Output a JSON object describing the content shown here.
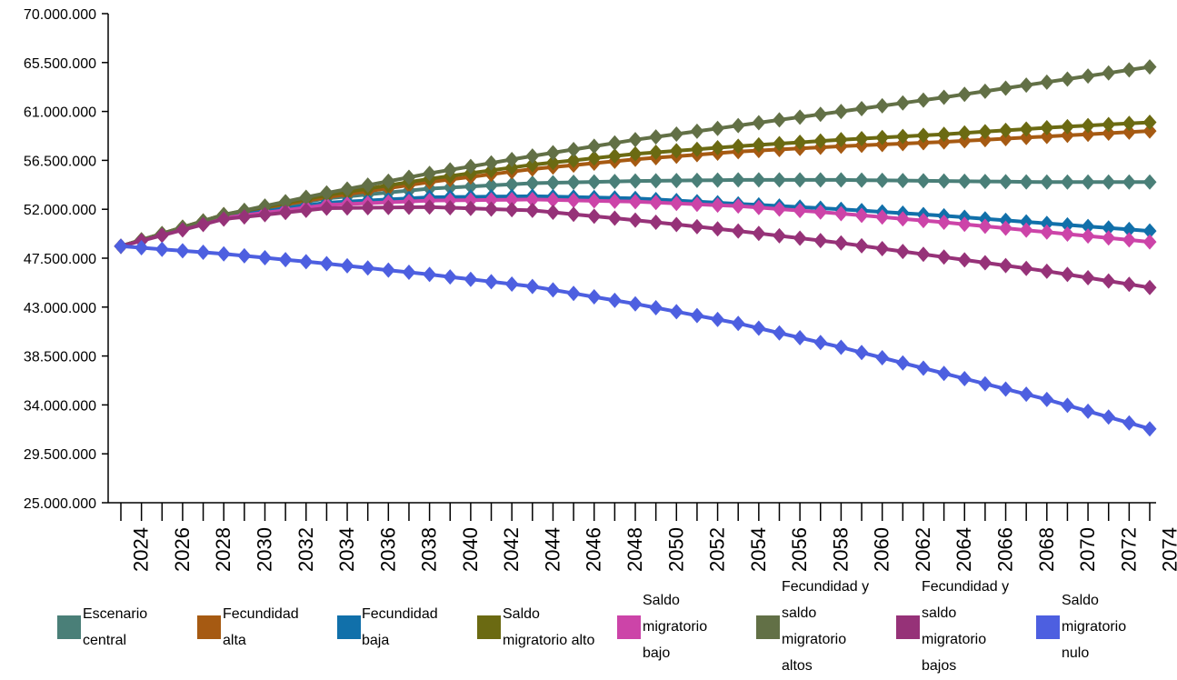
{
  "chart_data": {
    "type": "line",
    "title": "",
    "xlabel": "",
    "ylabel": "",
    "ylim": [
      25000000,
      70000000
    ],
    "y_ticks": [
      "25.000.000",
      "29.500.000",
      "34.000.000",
      "38.500.000",
      "43.000.000",
      "47.500.000",
      "52.000.000",
      "56.500.000",
      "61.000.000",
      "65.500.000",
      "70.000.000"
    ],
    "x_ticks": [
      "2024",
      "2026",
      "2028",
      "2030",
      "2032",
      "2034",
      "2036",
      "2038",
      "2040",
      "2042",
      "2044",
      "2046",
      "2048",
      "2050",
      "2052",
      "2054",
      "2056",
      "2058",
      "2060",
      "2062",
      "2064",
      "2066",
      "2068",
      "2070",
      "2072",
      "2074"
    ],
    "x_range": [
      2023,
      2073
    ],
    "marker": "diamond",
    "legend_position": "bottom",
    "series": [
      {
        "name": "Escenario central",
        "color": "#4a7f78",
        "anchors": [
          [
            2023,
            48600000
          ],
          [
            2028,
            51400000
          ],
          [
            2033,
            53000000
          ],
          [
            2038,
            53900000
          ],
          [
            2043,
            54400000
          ],
          [
            2048,
            54600000
          ],
          [
            2053,
            54700000
          ],
          [
            2058,
            54700000
          ],
          [
            2063,
            54600000
          ],
          [
            2068,
            54500000
          ],
          [
            2073,
            54500000
          ]
        ]
      },
      {
        "name": "Fecundidad alta",
        "color": "#a65a12",
        "anchors": [
          [
            2023,
            48600000
          ],
          [
            2028,
            51500000
          ],
          [
            2033,
            53100000
          ],
          [
            2038,
            54500000
          ],
          [
            2043,
            55700000
          ],
          [
            2048,
            56600000
          ],
          [
            2053,
            57300000
          ],
          [
            2058,
            57800000
          ],
          [
            2063,
            58200000
          ],
          [
            2068,
            58700000
          ],
          [
            2073,
            59200000
          ]
        ]
      },
      {
        "name": "Fecundidad baja",
        "color": "#1170aa",
        "anchors": [
          [
            2023,
            48600000
          ],
          [
            2028,
            51300000
          ],
          [
            2033,
            52600000
          ],
          [
            2038,
            53100000
          ],
          [
            2043,
            53200000
          ],
          [
            2048,
            53000000
          ],
          [
            2053,
            52500000
          ],
          [
            2058,
            52000000
          ],
          [
            2063,
            51400000
          ],
          [
            2068,
            50700000
          ],
          [
            2073,
            50000000
          ]
        ]
      },
      {
        "name": "Saldo migratorio alto",
        "color": "#6b6a12",
        "anchors": [
          [
            2023,
            48600000
          ],
          [
            2028,
            51500000
          ],
          [
            2033,
            53300000
          ],
          [
            2038,
            54800000
          ],
          [
            2043,
            56100000
          ],
          [
            2048,
            57100000
          ],
          [
            2053,
            57800000
          ],
          [
            2058,
            58400000
          ],
          [
            2063,
            58900000
          ],
          [
            2068,
            59500000
          ],
          [
            2073,
            60000000
          ]
        ]
      },
      {
        "name": "Saldo migratorio bajo",
        "color": "#cc44a8",
        "anchors": [
          [
            2023,
            48600000
          ],
          [
            2028,
            51200000
          ],
          [
            2033,
            52400000
          ],
          [
            2038,
            52800000
          ],
          [
            2043,
            52900000
          ],
          [
            2048,
            52700000
          ],
          [
            2053,
            52300000
          ],
          [
            2058,
            51600000
          ],
          [
            2063,
            50800000
          ],
          [
            2068,
            49900000
          ],
          [
            2073,
            49000000
          ]
        ]
      },
      {
        "name": "Fecundidad y saldo migratorio altos",
        "color": "#627046",
        "anchors": [
          [
            2023,
            48600000
          ],
          [
            2028,
            51500000
          ],
          [
            2033,
            53500000
          ],
          [
            2038,
            55300000
          ],
          [
            2043,
            56900000
          ],
          [
            2048,
            58400000
          ],
          [
            2053,
            59700000
          ],
          [
            2058,
            61000000
          ],
          [
            2063,
            62300000
          ],
          [
            2068,
            63700000
          ],
          [
            2073,
            65100000
          ]
        ]
      },
      {
        "name": "Fecundidad y saldo migratorio bajos",
        "color": "#963278",
        "anchors": [
          [
            2023,
            48600000
          ],
          [
            2028,
            51100000
          ],
          [
            2033,
            52100000
          ],
          [
            2038,
            52200000
          ],
          [
            2043,
            51900000
          ],
          [
            2048,
            51000000
          ],
          [
            2053,
            50000000
          ],
          [
            2058,
            48900000
          ],
          [
            2063,
            47600000
          ],
          [
            2068,
            46300000
          ],
          [
            2073,
            44800000
          ]
        ]
      },
      {
        "name": "Saldo migratorio nulo",
        "color": "#4d5fe0",
        "anchors": [
          [
            2023,
            48600000
          ],
          [
            2028,
            47900000
          ],
          [
            2033,
            47000000
          ],
          [
            2038,
            46000000
          ],
          [
            2043,
            44900000
          ],
          [
            2048,
            43300000
          ],
          [
            2053,
            41500000
          ],
          [
            2058,
            39300000
          ],
          [
            2063,
            36900000
          ],
          [
            2068,
            34500000
          ],
          [
            2073,
            31800000
          ]
        ]
      }
    ]
  }
}
